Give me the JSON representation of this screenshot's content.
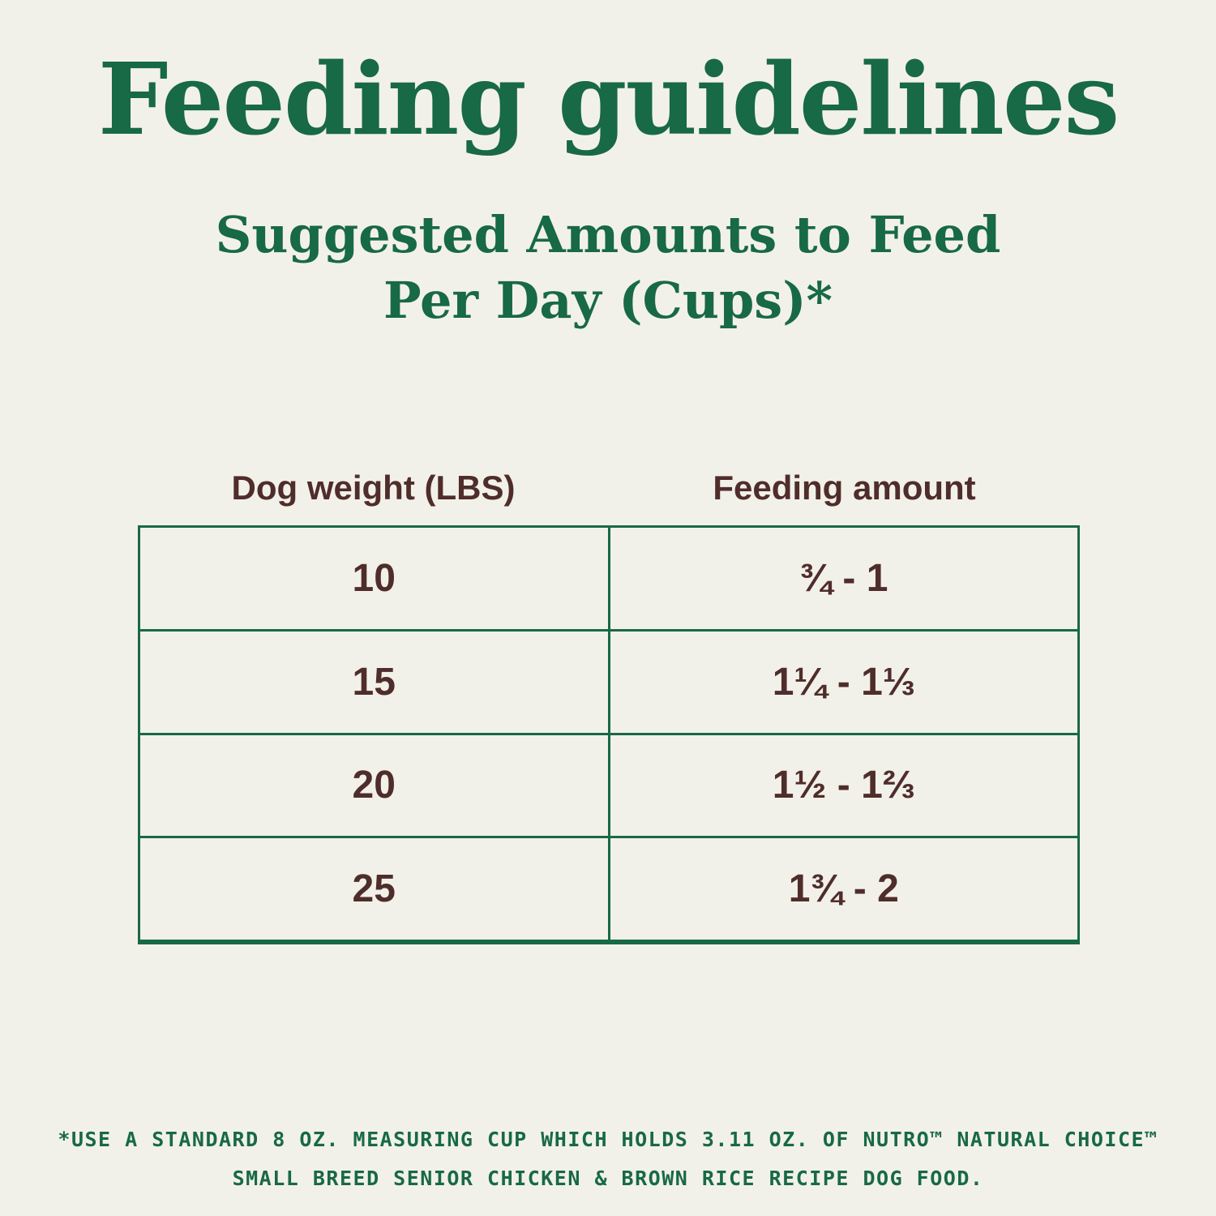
{
  "page": {
    "title": "Feeding guidelines",
    "subtitle": "Suggested Amounts to Feed\nPer Day (Cups)*",
    "footnote": "*USE A STANDARD 8 OZ. MEASURING CUP WHICH HOLDS 3.11 OZ. OF NUTRO™ NATURAL CHOICE™\nSMALL BREED SENIOR CHICKEN & BROWN RICE RECIPE DOG FOOD."
  },
  "colors": {
    "green": "#186945",
    "brown": "#4f2d2b",
    "background": "#f2f1e9"
  },
  "table": {
    "headers": {
      "weight": "Dog weight (LBS)",
      "amount": "Feeding amount"
    },
    "rows": [
      {
        "weight": "10",
        "amount": "¾ - 1"
      },
      {
        "weight": "15",
        "amount": "1¼ - 1⅓"
      },
      {
        "weight": "20",
        "amount": "1½ - 1⅔"
      },
      {
        "weight": "25",
        "amount": "1¾ - 2"
      }
    ]
  },
  "chart_data": {
    "type": "table",
    "title": "Feeding guidelines — Suggested Amounts to Feed Per Day (Cups)*",
    "columns": [
      "Dog weight (LBS)",
      "Feeding amount"
    ],
    "rows": [
      [
        "10",
        "¾ - 1"
      ],
      [
        "15",
        "1¼ - 1⅓"
      ],
      [
        "20",
        "1½ - 1⅔"
      ],
      [
        "25",
        "1¾ - 2"
      ]
    ]
  }
}
